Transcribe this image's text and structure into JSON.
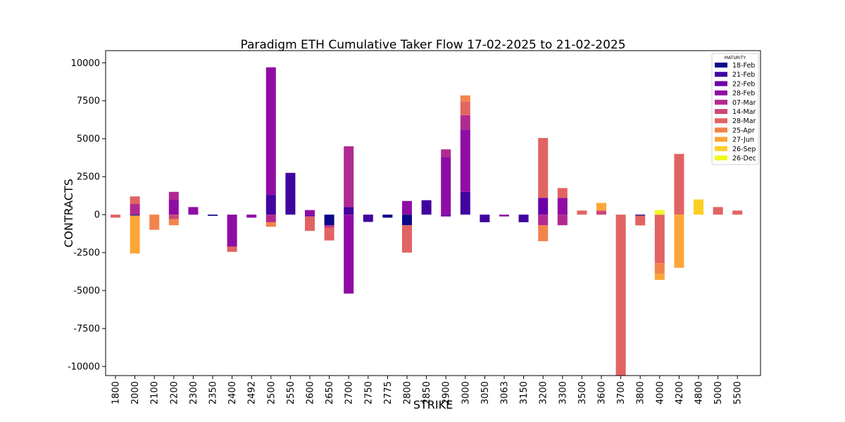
{
  "chart_data": {
    "type": "bar",
    "title": "Paradigm ETH Cumulative Taker Flow 17-02-2025 to 21-02-2025",
    "xlabel": "STRIKE",
    "ylabel": "CONTRACTS",
    "ylim": [
      -10600,
      10800
    ],
    "yticks": [
      10000,
      7500,
      5000,
      2500,
      0,
      -2500,
      -5000,
      -7500,
      -10000
    ],
    "stacked": true,
    "grid": false,
    "legend": {
      "title": "MATURITY",
      "position": "top-right"
    },
    "categories": [
      "1800",
      "2000",
      "2100",
      "2200",
      "2300",
      "2350",
      "2400",
      "2492",
      "2500",
      "2550",
      "2600",
      "2650",
      "2700",
      "2750",
      "2775",
      "2800",
      "2850",
      "2900",
      "3000",
      "3050",
      "3063",
      "3150",
      "3200",
      "3300",
      "3500",
      "3600",
      "3700",
      "3800",
      "4000",
      "4200",
      "4800",
      "5000",
      "5500"
    ],
    "series": [
      {
        "name": "18-Feb",
        "color": "#0d0887",
        "values": [
          0,
          -60,
          0,
          0,
          0,
          -80,
          0,
          0,
          0,
          0,
          0,
          -700,
          0,
          0,
          -200,
          -700,
          0,
          0,
          0,
          0,
          0,
          0,
          0,
          0,
          0,
          0,
          0,
          -60,
          0,
          0,
          0,
          0,
          0
        ]
      },
      {
        "name": "21-Feb",
        "color": "#41049d",
        "values": [
          0,
          0,
          0,
          0,
          0,
          0,
          0,
          0,
          1300,
          2750,
          0,
          0,
          500,
          -480,
          0,
          0,
          950,
          0,
          1500,
          -500,
          0,
          -500,
          0,
          0,
          0,
          0,
          0,
          0,
          0,
          0,
          0,
          0,
          0
        ]
      },
      {
        "name": "22-Feb",
        "color": "#6a00a8",
        "values": [
          0,
          0,
          0,
          0,
          0,
          0,
          0,
          0,
          0,
          0,
          -120,
          0,
          0,
          0,
          0,
          0,
          0,
          -120,
          0,
          0,
          0,
          0,
          1100,
          0,
          0,
          0,
          0,
          0,
          0,
          0,
          0,
          0,
          0
        ]
      },
      {
        "name": "28-Feb",
        "color": "#8f0da4",
        "values": [
          0,
          0,
          0,
          1000,
          500,
          0,
          -2100,
          -200,
          8400,
          0,
          300,
          0,
          -5200,
          0,
          0,
          900,
          0,
          3800,
          4100,
          0,
          -120,
          0,
          0,
          1100,
          0,
          0,
          0,
          0,
          0,
          0,
          0,
          0,
          0
        ]
      },
      {
        "name": "07-Mar",
        "color": "#b12a90",
        "values": [
          0,
          700,
          0,
          500,
          0,
          0,
          0,
          0,
          -500,
          0,
          0,
          -100,
          4000,
          0,
          0,
          0,
          0,
          500,
          950,
          0,
          0,
          0,
          -700,
          -700,
          0,
          0,
          0,
          0,
          0,
          0,
          0,
          0,
          0
        ]
      },
      {
        "name": "14-Mar",
        "color": "#cc4778",
        "values": [
          0,
          0,
          0,
          -300,
          0,
          0,
          0,
          0,
          0,
          0,
          0,
          -100,
          0,
          0,
          0,
          0,
          0,
          0,
          0,
          0,
          0,
          0,
          0,
          0,
          0,
          270,
          0,
          0,
          0,
          0,
          0,
          0,
          0
        ]
      },
      {
        "name": "28-Mar",
        "color": "#e16462",
        "values": [
          -200,
          500,
          0,
          0,
          0,
          0,
          -350,
          0,
          0,
          0,
          -950,
          -800,
          0,
          0,
          0,
          -1800,
          0,
          0,
          900,
          0,
          0,
          0,
          3950,
          650,
          270,
          0,
          -10600,
          -650,
          -3200,
          4000,
          0,
          500,
          270
        ]
      },
      {
        "name": "25-Apr",
        "color": "#f2844b",
        "values": [
          0,
          0,
          -1000,
          -400,
          0,
          0,
          0,
          0,
          -300,
          0,
          0,
          0,
          0,
          0,
          0,
          0,
          0,
          0,
          400,
          0,
          0,
          0,
          -1050,
          0,
          0,
          0,
          0,
          0,
          -700,
          0,
          0,
          0,
          0
        ]
      },
      {
        "name": "27-Jun",
        "color": "#fca636",
        "values": [
          0,
          -2500,
          0,
          0,
          0,
          0,
          0,
          0,
          0,
          0,
          0,
          0,
          0,
          0,
          0,
          0,
          0,
          0,
          0,
          0,
          0,
          0,
          0,
          0,
          0,
          500,
          0,
          0,
          -400,
          -3500,
          0,
          0,
          0
        ]
      },
      {
        "name": "26-Sep",
        "color": "#fcce25",
        "values": [
          0,
          0,
          0,
          0,
          0,
          0,
          0,
          0,
          0,
          0,
          0,
          0,
          0,
          0,
          0,
          0,
          0,
          0,
          0,
          0,
          0,
          0,
          0,
          0,
          0,
          0,
          0,
          0,
          0,
          0,
          1000,
          0,
          0
        ]
      },
      {
        "name": "26-Dec",
        "color": "#f0f921",
        "values": [
          0,
          0,
          0,
          0,
          0,
          0,
          0,
          0,
          0,
          0,
          0,
          0,
          0,
          0,
          0,
          0,
          0,
          0,
          0,
          0,
          0,
          0,
          0,
          0,
          0,
          0,
          0,
          0,
          300,
          0,
          0,
          0,
          0
        ]
      }
    ]
  }
}
